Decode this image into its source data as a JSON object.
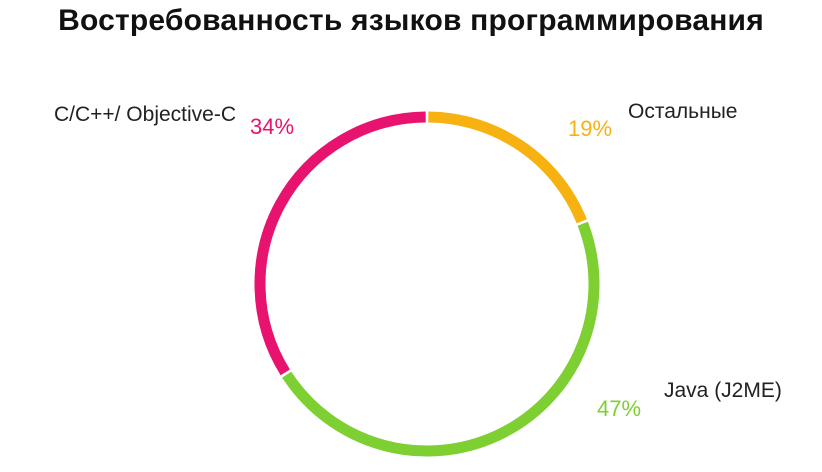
{
  "chart_data": {
    "type": "pie",
    "title": "Востребованность языков программирования",
    "categories": [
      "Остальные",
      "Java (J2ME)",
      "C/C++/ Objective-C"
    ],
    "values": [
      19,
      47,
      34
    ],
    "value_labels": [
      "19%",
      "47%",
      "34%"
    ],
    "colors": [
      "#f7b212",
      "#7dcf32",
      "#e8136e"
    ],
    "style": "donut ring"
  }
}
